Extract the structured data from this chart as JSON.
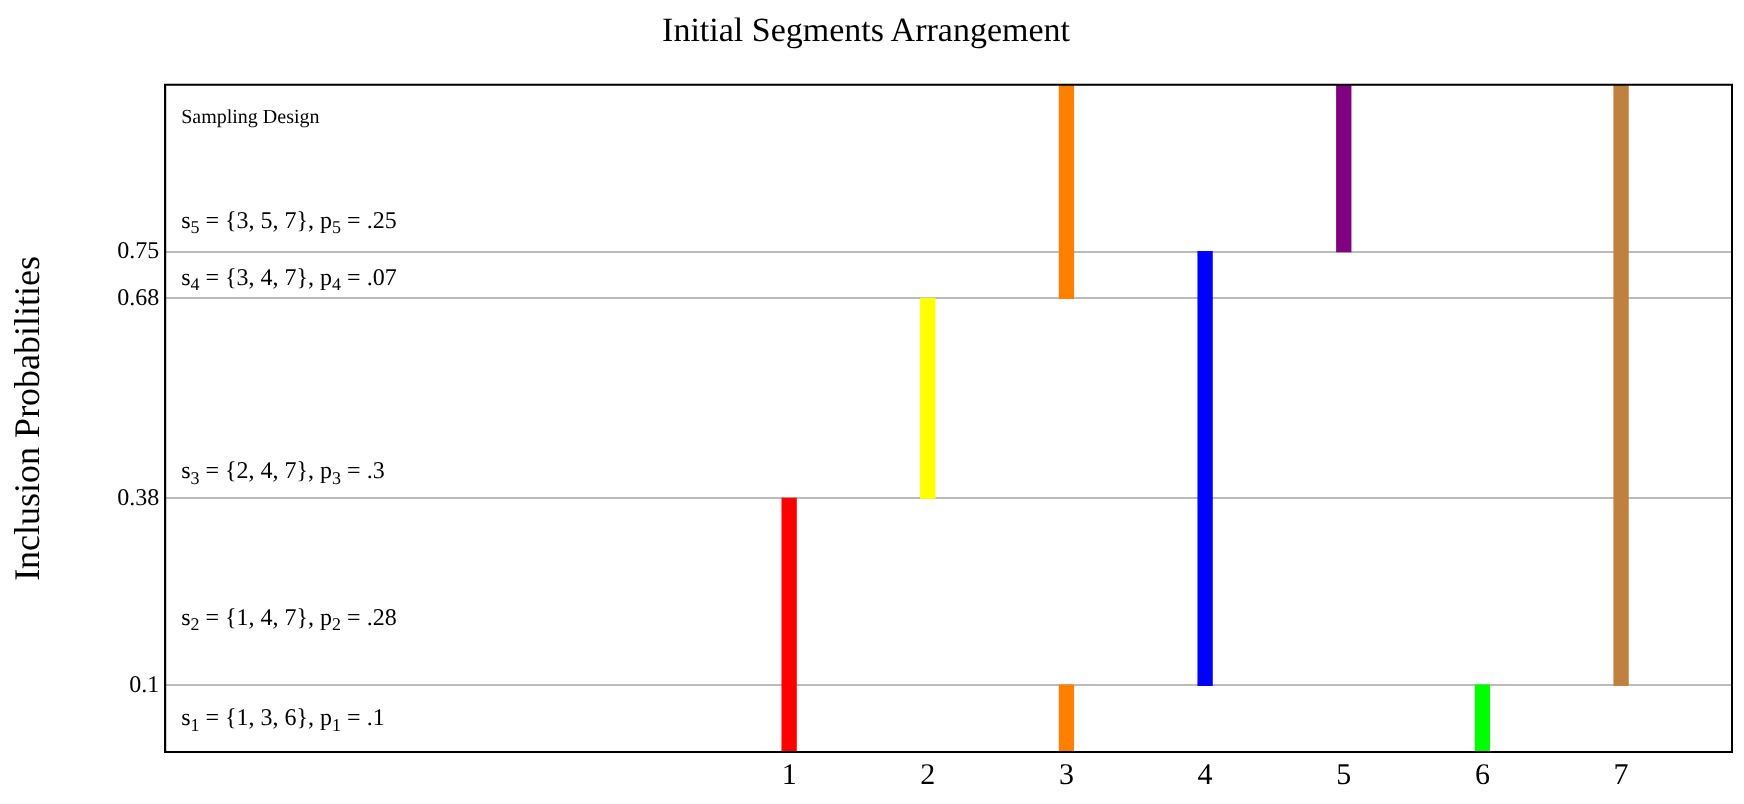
{
  "chart_data": {
    "type": "bar",
    "title": "Initial Segments Arrangement",
    "ylabel": "Inclusion Probabilities",
    "series": [
      {
        "x": [
          1,
          2,
          3,
          4,
          5,
          6,
          7
        ],
        "base": [
          0,
          0.38,
          0.68,
          0.1,
          0.75,
          0,
          0.1
        ],
        "values": [
          0.38,
          0.3,
          0.32,
          0.65,
          0.25,
          0.1,
          0.9
        ],
        "colors": [
          "#ff0000",
          "#ffff00",
          "#ff8000",
          "#0000ff",
          "#800080",
          "#00ff00",
          "#bf8040"
        ]
      },
      {
        "x": [
          3
        ],
        "base": [
          0
        ],
        "values": [
          0.1
        ],
        "color": "#ff8000"
      }
    ],
    "xlim": [
      -3.5,
      7.8
    ],
    "xticks": [
      1,
      2,
      3,
      4,
      5,
      6,
      7
    ],
    "ylim": [
      0,
      1
    ],
    "yticks": [
      0.1,
      0.38,
      0.68,
      0.75
    ],
    "grid": "y",
    "legend": false,
    "annotations": [
      "Sampling Design",
      "s$_{5}$ = {3, 5, 7}, p$_{5}$ = .25",
      "s$_{4}$ = {3, 4, 7}, p$_{4}$ = .07",
      "s$_{3}$ = {2, 4, 7}, p$_{3}$ = .3",
      "s$_{2}$ = {1, 4, 7}, p$_{2}$ = .28",
      "s$_{1}$ = {1, 3, 6}, p$_{1}$ = .1"
    ]
  }
}
